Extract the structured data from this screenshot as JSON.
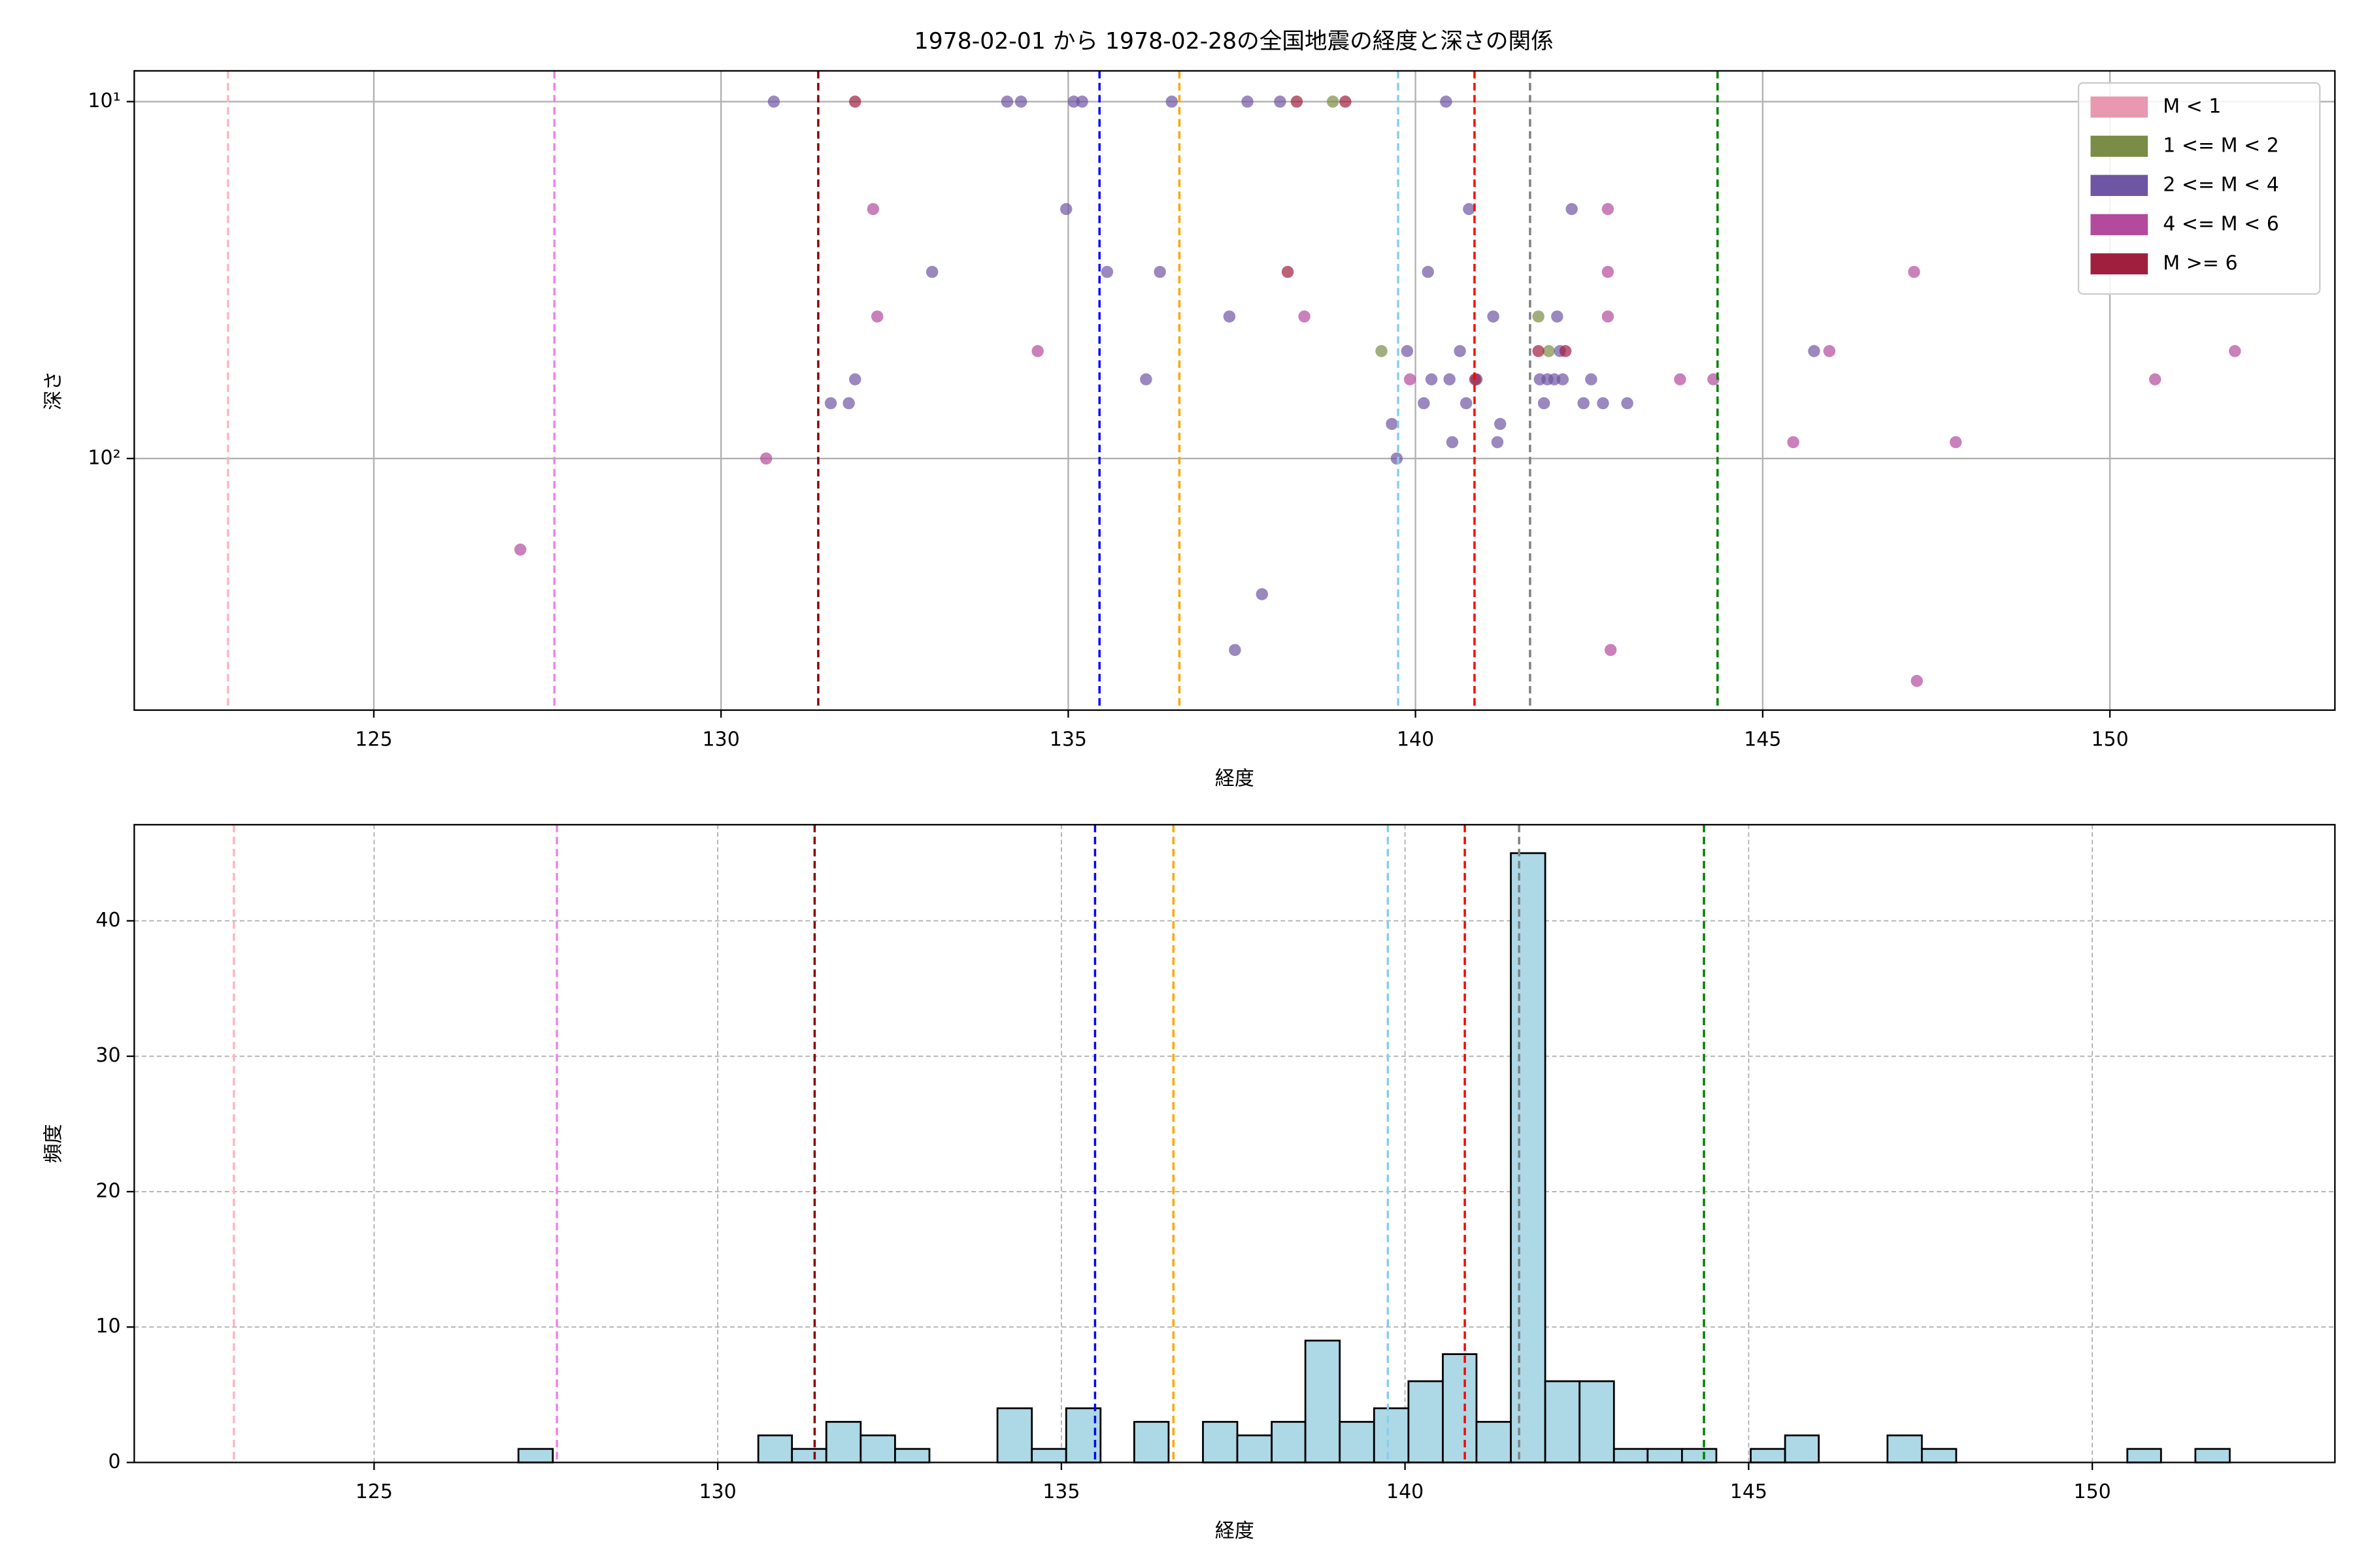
{
  "chart_data": [
    {
      "type": "scatter",
      "title": "1978-02-01 から 1978-02-28の全国地震の経度と深さの関係",
      "xlabel": "経度",
      "ylabel": "深さ",
      "xlim": [
        121.55,
        153.24
      ],
      "ylim": [
        8.2,
        507
      ],
      "ylog": true,
      "yinverted": true,
      "grid": true,
      "legend": "upper right",
      "xticks": [
        125,
        130,
        135,
        140,
        145,
        150
      ],
      "yticks": [
        {
          "value": 10,
          "label": "10¹"
        },
        {
          "value": 100,
          "label": "10²"
        }
      ],
      "series": [
        {
          "name": "M < 1",
          "color": "#e899b1",
          "x": [],
          "values": []
        },
        {
          "name": "1 <= M < 2",
          "color": "#7a8c45",
          "x": [
            138.81,
            139.51,
            141.77,
            141.92
          ],
          "values": [
            10,
            50,
            40,
            50
          ]
        },
        {
          "name": "2 <= M < 4",
          "color": "#6f56a4",
          "x": [
            130.76,
            134.12,
            134.32,
            135.08,
            135.2,
            136.49,
            137.58,
            138.05,
            140.44,
            134.97,
            140.77,
            142.25,
            133.04,
            135.56,
            136.32,
            140.18,
            137.32,
            141.12,
            142.04,
            139.88,
            140.64,
            142.08,
            145.74,
            131.93,
            136.12,
            140.23,
            140.49,
            140.88,
            141.79,
            141.9,
            142.0,
            142.12,
            142.53,
            131.58,
            131.84,
            140.12,
            140.73,
            141.85,
            142.42,
            142.7,
            143.05,
            139.66,
            141.22,
            140.53,
            141.18,
            139.73,
            137.79,
            137.4
          ],
          "values": [
            10,
            10,
            10,
            10,
            10,
            10,
            10,
            10,
            10,
            20,
            20,
            20,
            30,
            30,
            30,
            30,
            40,
            40,
            40,
            50,
            50,
            50,
            50,
            60,
            60,
            60,
            60,
            60,
            60,
            60,
            60,
            60,
            60,
            70,
            70,
            70,
            70,
            70,
            70,
            70,
            70,
            80,
            80,
            90,
            90,
            100,
            240,
            344
          ]
        },
        {
          "name": "4 <= M < 6",
          "color": "#b44a9c",
          "x": [
            132.19,
            142.77,
            142.77,
            147.18,
            132.25,
            138.4,
            142.77,
            134.56,
            145.96,
            151.8,
            139.92,
            143.81,
            144.29,
            150.65,
            145.44,
            147.78,
            130.65,
            127.11,
            142.81,
            147.22
          ],
          "values": [
            20,
            20,
            30,
            30,
            40,
            40,
            40,
            50,
            50,
            50,
            60,
            60,
            60,
            60,
            90,
            90,
            100,
            180,
            344,
            420
          ]
        },
        {
          "name": "M >= 6",
          "color": "#a01f3f",
          "x": [
            131.93,
            138.29,
            138.99,
            138.16,
            141.77,
            142.16,
            140.86
          ],
          "values": [
            10,
            10,
            10,
            30,
            50,
            50,
            60
          ]
        }
      ],
      "vlines": [
        {
          "value": 122.9,
          "color": "#ffb6c1"
        },
        {
          "value": 127.6,
          "color": "#ee82ee"
        },
        {
          "value": 131.4,
          "color": "#8b0000"
        },
        {
          "value": 135.45,
          "color": "#0000ff"
        },
        {
          "value": 136.6,
          "color": "#ffa500"
        },
        {
          "value": 139.75,
          "color": "#87ceeb"
        },
        {
          "value": 140.85,
          "color": "#ff0000"
        },
        {
          "value": 141.65,
          "color": "#808080"
        },
        {
          "value": 144.35,
          "color": "#008000"
        }
      ]
    },
    {
      "type": "histogram",
      "xlabel": "経度",
      "ylabel": "頻度",
      "xlim": [
        121.51,
        153.53
      ],
      "ylim": [
        0,
        47.1
      ],
      "grid": true,
      "xticks": [
        125,
        130,
        135,
        140,
        145,
        150
      ],
      "yticks": [
        0,
        10,
        20,
        30,
        40
      ],
      "color": "#add8e6",
      "edgecolor": "#000000",
      "bins": [
        127.1,
        127.6,
        128.1,
        128.59,
        129.09,
        129.59,
        130.09,
        130.59,
        131.08,
        131.58,
        132.08,
        132.58,
        133.08,
        133.57,
        134.07,
        134.57,
        135.07,
        135.57,
        136.06,
        136.56,
        137.06,
        137.56,
        138.06,
        138.55,
        139.05,
        139.55,
        140.05,
        140.55,
        141.04,
        141.54,
        142.04,
        142.54,
        143.04,
        143.53,
        144.03,
        144.53,
        145.03,
        145.53,
        146.02,
        146.52,
        147.02,
        147.52,
        148.02,
        148.51,
        149.01,
        149.51,
        150.01,
        150.51,
        151.0,
        151.5,
        152.0
      ],
      "values": [
        1,
        0,
        0,
        0,
        0,
        0,
        0,
        2,
        1,
        3,
        2,
        1,
        0,
        0,
        4,
        1,
        4,
        0,
        3,
        0,
        3,
        2,
        3,
        9,
        3,
        4,
        6,
        8,
        3,
        45,
        6,
        6,
        1,
        1,
        1,
        0,
        1,
        2,
        0,
        0,
        2,
        1,
        0,
        0,
        0,
        0,
        0,
        1,
        0,
        1
      ],
      "vlines": [
        {
          "value": 122.96,
          "color": "#ffb6c1"
        },
        {
          "value": 127.66,
          "color": "#ee82ee"
        },
        {
          "value": 131.41,
          "color": "#8b0000"
        },
        {
          "value": 135.49,
          "color": "#0000ff"
        },
        {
          "value": 136.63,
          "color": "#ffa500"
        },
        {
          "value": 139.75,
          "color": "#87ceeb"
        },
        {
          "value": 140.87,
          "color": "#ff0000"
        },
        {
          "value": 141.66,
          "color": "#808080"
        },
        {
          "value": 144.35,
          "color": "#008000"
        }
      ]
    }
  ]
}
